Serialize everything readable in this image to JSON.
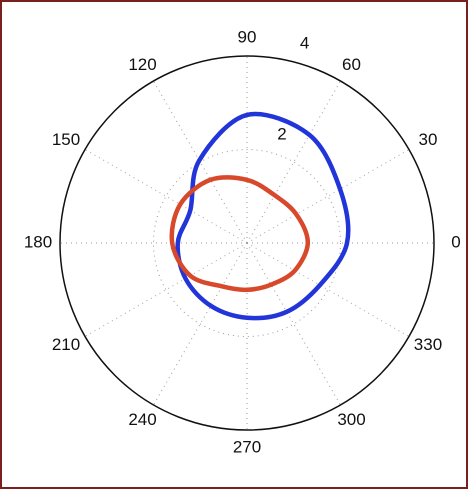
{
  "chart_data": {
    "type": "polar",
    "theta": [
      0,
      30,
      60,
      90,
      120,
      150,
      180,
      210,
      240,
      270,
      300,
      330
    ],
    "series": [
      {
        "color": "#2235d8",
        "values": [
          2.14,
          2.3,
          2.67,
          2.74,
          2.04,
          1.4,
          1.48,
          1.52,
          1.55,
          1.6,
          1.7,
          1.8
        ]
      },
      {
        "color": "#d8482a",
        "values": [
          1.3,
          1.22,
          1.18,
          1.35,
          1.56,
          1.65,
          1.6,
          1.4,
          1.07,
          1.0,
          1.03,
          1.18
        ]
      }
    ],
    "rlim": [
      0,
      4
    ],
    "rticks": [
      2,
      4
    ],
    "angle_ticks": [
      0,
      30,
      60,
      90,
      120,
      150,
      180,
      210,
      240,
      270,
      300,
      330
    ],
    "grid": true
  }
}
